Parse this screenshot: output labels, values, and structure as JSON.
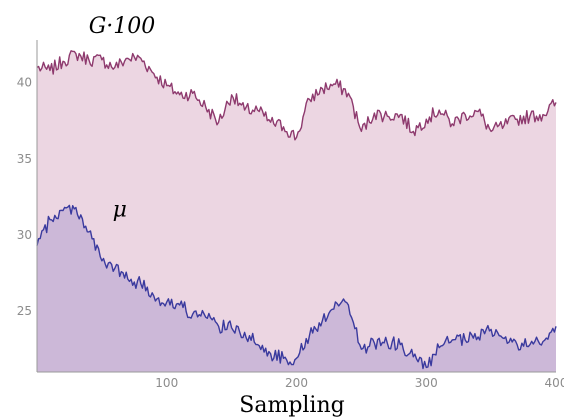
{
  "chart_data": {
    "type": "area",
    "xlabel": "Sampling",
    "ylabel": "",
    "xlim": [
      0,
      400
    ],
    "ylim": [
      21,
      42.8
    ],
    "xticks": [
      "100",
      "200",
      "300",
      "400"
    ],
    "yticks": [
      "25",
      "30",
      "35",
      "40"
    ],
    "grid": false,
    "series": [
      {
        "name": "G·100",
        "color": "#8e3a6e",
        "fill": "#ecd6e2",
        "x": [
          0,
          10,
          20,
          30,
          40,
          50,
          60,
          70,
          80,
          90,
          100,
          110,
          120,
          130,
          140,
          150,
          160,
          170,
          180,
          190,
          200,
          210,
          220,
          230,
          240,
          250,
          260,
          270,
          280,
          290,
          300,
          310,
          320,
          330,
          340,
          350,
          360,
          370,
          380,
          390,
          400
        ],
        "values": [
          41.0,
          40.8,
          41.4,
          41.9,
          41.5,
          41.5,
          41.0,
          41.6,
          41.6,
          40.6,
          39.8,
          39.2,
          39.3,
          38.4,
          37.4,
          39.2,
          38.2,
          38.2,
          37.4,
          37.1,
          36.4,
          38.9,
          39.6,
          39.9,
          39.3,
          36.8,
          38.0,
          37.8,
          37.9,
          36.8,
          37.6,
          38.2,
          37.3,
          37.9,
          38.1,
          36.8,
          37.2,
          37.6,
          37.8,
          37.9,
          38.7
        ]
      },
      {
        "name": "μ",
        "color": "#3a3a9e",
        "fill": "#ccb8d8",
        "x": [
          0,
          10,
          20,
          30,
          40,
          50,
          60,
          70,
          80,
          90,
          100,
          110,
          120,
          130,
          140,
          150,
          160,
          170,
          180,
          190,
          200,
          210,
          220,
          230,
          240,
          250,
          260,
          270,
          280,
          290,
          300,
          310,
          320,
          330,
          340,
          350,
          360,
          370,
          380,
          390,
          400
        ],
        "values": [
          29.3,
          31.0,
          31.6,
          31.8,
          30.2,
          28.3,
          27.8,
          27.1,
          26.8,
          26.0,
          25.6,
          25.4,
          24.8,
          24.6,
          24.0,
          23.9,
          23.6,
          22.8,
          22.2,
          21.9,
          21.9,
          23.4,
          24.4,
          25.6,
          25.4,
          22.5,
          22.9,
          22.9,
          22.8,
          22.0,
          21.3,
          22.6,
          23.1,
          23.1,
          23.3,
          23.8,
          23.2,
          22.8,
          22.8,
          23.0,
          24.0
        ]
      }
    ],
    "annotations": [
      {
        "text": "μ",
        "x": 70,
        "y": 31.2
      }
    ]
  }
}
